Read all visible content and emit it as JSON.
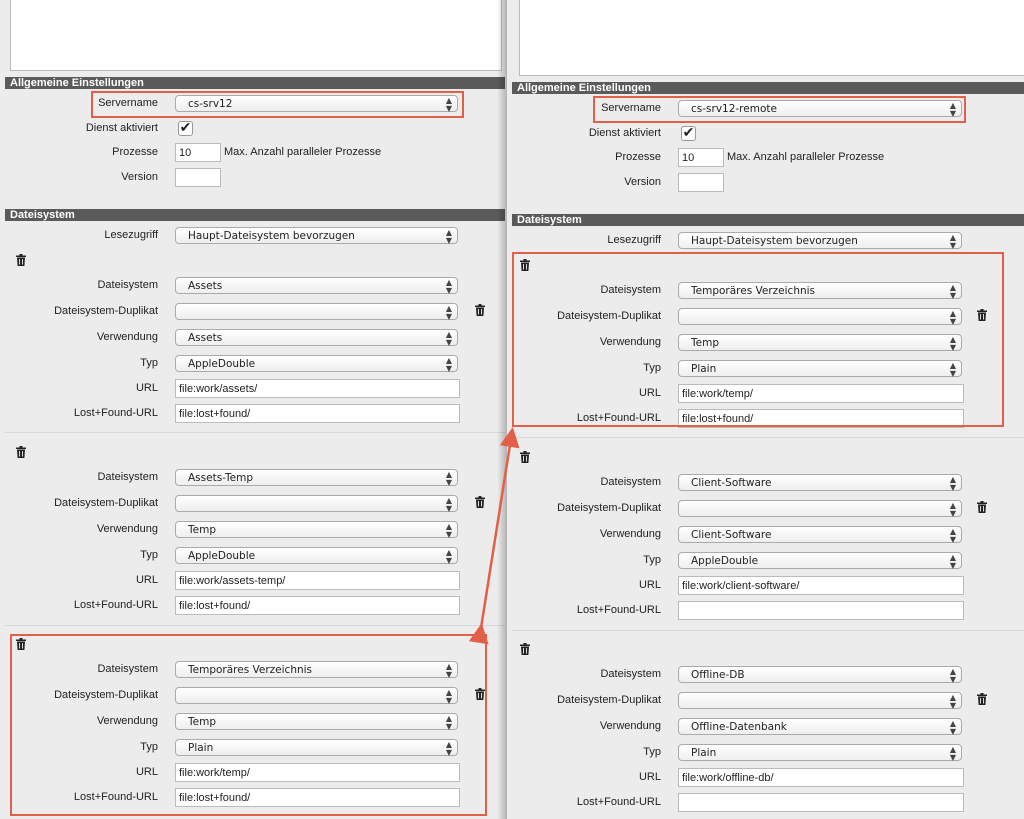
{
  "colors": {
    "accent": "#e2604a",
    "header_bg": "#5a5a5a"
  },
  "labels": {
    "general": "Allgemeine Einstellungen",
    "servername": "Servername",
    "service": "Dienst aktiviert",
    "processes": "Prozesse",
    "version": "Version",
    "processes_hint": "Max. Anzahl paralleler Prozesse",
    "filesystem_section": "Dateisystem",
    "read_access": "Lesezugriff",
    "fs": "Dateisystem",
    "fs_dup": "Dateisystem-Duplikat",
    "usage": "Verwendung",
    "type": "Typ",
    "url": "URL",
    "lf_url": "Lost+Found-URL"
  },
  "panels": [
    {
      "servername": "cs-srv12",
      "service_enabled": true,
      "processes": "10",
      "version": "",
      "read_access": "Haupt-Dateisystem bevorzugen",
      "filesystems": [
        {
          "fs": "Assets",
          "fs_dup": "",
          "usage": "Assets",
          "type": "AppleDouble",
          "url": "file:work/assets/",
          "lf_url": "file:lost+found/"
        },
        {
          "fs": "Assets-Temp",
          "fs_dup": "",
          "usage": "Temp",
          "type": "AppleDouble",
          "url": "file:work/assets-temp/",
          "lf_url": "file:lost+found/"
        },
        {
          "fs": "Temporäres Verzeichnis",
          "fs_dup": "",
          "usage": "Temp",
          "type": "Plain",
          "url": "file:work/temp/",
          "lf_url": "file:lost+found/"
        }
      ]
    },
    {
      "servername": "cs-srv12-remote",
      "service_enabled": true,
      "processes": "10",
      "version": "",
      "read_access": "Haupt-Dateisystem bevorzugen",
      "filesystems": [
        {
          "fs": "Temporäres Verzeichnis",
          "fs_dup": "",
          "usage": "Temp",
          "type": "Plain",
          "url": "file:work/temp/",
          "lf_url": "file:lost+found/"
        },
        {
          "fs": "Client-Software",
          "fs_dup": "",
          "usage": "Client-Software",
          "type": "AppleDouble",
          "url": "file:work/client-software/",
          "lf_url": ""
        },
        {
          "fs": "Offline-DB",
          "fs_dup": "",
          "usage": "Offline-Datenbank",
          "type": "Plain",
          "url": "file:work/offline-db/",
          "lf_url": ""
        }
      ]
    }
  ]
}
